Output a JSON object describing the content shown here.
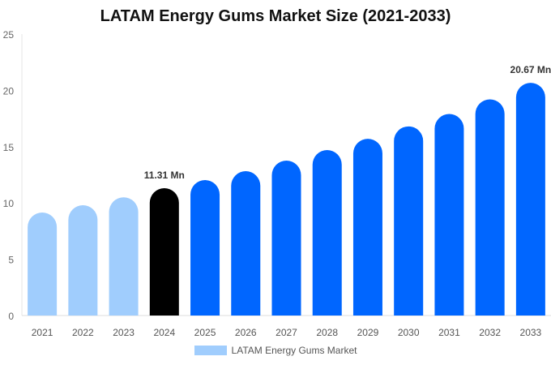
{
  "chart_data": {
    "type": "bar",
    "title": "LATAM Energy Gums Market Size (2021-2033)",
    "categories": [
      "2021",
      "2022",
      "2023",
      "2024",
      "2025",
      "2026",
      "2027",
      "2028",
      "2029",
      "2030",
      "2031",
      "2032",
      "2033"
    ],
    "series": [
      {
        "name": "LATAM Energy Gums Market",
        "values": [
          9.15,
          9.8,
          10.5,
          11.31,
          12.03,
          12.82,
          13.76,
          14.7,
          15.7,
          16.8,
          17.9,
          19.2,
          20.67
        ]
      }
    ],
    "data_labels": [
      {
        "category": "2024",
        "text": "11.31 Mn"
      },
      {
        "category": "2033",
        "text": "20.67 Mn"
      }
    ],
    "ylim": [
      0,
      25
    ],
    "yticks": [
      0,
      5,
      10,
      15,
      20,
      25
    ],
    "xlabel": "",
    "ylabel": "",
    "grid": false,
    "legend": "bottom",
    "colors": {
      "historical": "#a0cdfd",
      "current": "#000000",
      "forecast": "#0066ff"
    }
  }
}
